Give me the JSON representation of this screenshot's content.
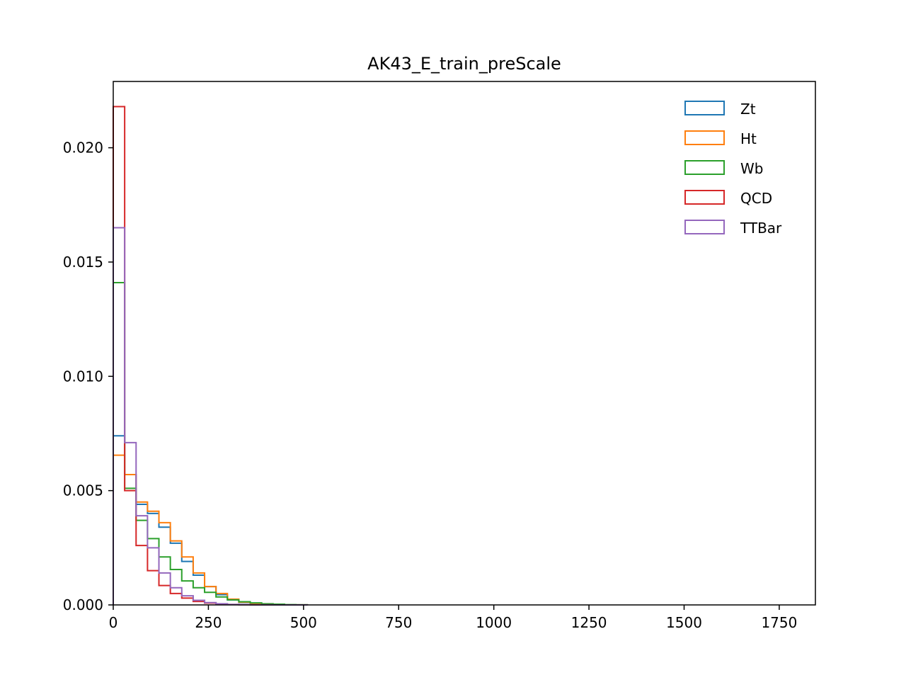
{
  "chart_data": {
    "type": "histogram",
    "title": "AK43_E_train_preScale",
    "xlabel": "",
    "ylabel": "",
    "xlim": [
      0,
      1845
    ],
    "ylim": [
      0,
      0.0229
    ],
    "grid": false,
    "legend_position": "top-right",
    "x_ticks": [
      0,
      250,
      500,
      750,
      1000,
      1250,
      1500,
      1750
    ],
    "x_tick_labels": [
      "0",
      "250",
      "500",
      "750",
      "1000",
      "1250",
      "1500",
      "1750"
    ],
    "y_ticks": [
      0.0,
      0.005,
      0.01,
      0.015,
      0.02
    ],
    "y_tick_labels": [
      "0.000",
      "0.005",
      "0.010",
      "0.015",
      "0.020"
    ],
    "bin_edges": [
      0,
      30,
      60,
      90,
      120,
      150,
      180,
      210,
      240,
      270,
      300,
      330,
      360,
      390,
      420,
      450,
      480,
      510
    ],
    "series": [
      {
        "name": "Zt",
        "color": "#1f77b4",
        "values": [
          0.0074,
          0.0057,
          0.0044,
          0.004,
          0.0034,
          0.0027,
          0.0019,
          0.0013,
          0.0008,
          0.00045,
          0.00022,
          0.00011,
          5e-05,
          2e-05,
          1e-05,
          5e-06,
          2e-06
        ]
      },
      {
        "name": "Ht",
        "color": "#ff7f0e",
        "values": [
          0.00655,
          0.0057,
          0.0045,
          0.0041,
          0.0036,
          0.0028,
          0.0021,
          0.0014,
          0.0008,
          0.0005,
          0.00025,
          0.00012,
          5e-05,
          2e-05,
          1e-05,
          5e-06,
          2e-06
        ]
      },
      {
        "name": "Wb",
        "color": "#2ca02c",
        "values": [
          0.0141,
          0.0051,
          0.0037,
          0.0029,
          0.0021,
          0.00155,
          0.00105,
          0.00075,
          0.00055,
          0.00035,
          0.00022,
          0.00014,
          9e-05,
          5e-05,
          3e-05,
          1e-05,
          5e-06
        ]
      },
      {
        "name": "QCD",
        "color": "#d62728",
        "values": [
          0.0218,
          0.005,
          0.0026,
          0.0015,
          0.00085,
          0.0005,
          0.0003,
          0.00015,
          8e-05,
          4e-05,
          2e-05,
          1e-05,
          5e-06,
          2e-06,
          1e-06,
          5e-07,
          2e-07
        ]
      },
      {
        "name": "TTBar",
        "color": "#9467bd",
        "values": [
          0.0165,
          0.0071,
          0.0039,
          0.0025,
          0.0014,
          0.00075,
          0.0004,
          0.0002,
          0.0001,
          5e-05,
          2e-05,
          1e-05,
          5e-06,
          2e-06,
          1e-06,
          5e-07,
          2e-07
        ]
      }
    ]
  }
}
